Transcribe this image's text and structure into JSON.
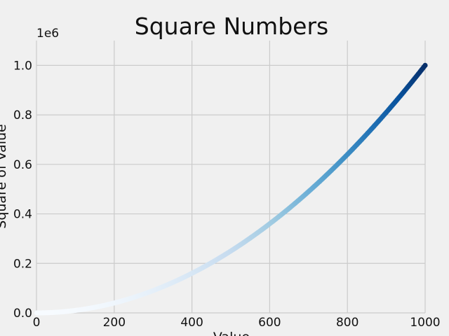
{
  "chart_data": {
    "type": "scatter",
    "title": "Square Numbers",
    "xlabel": "Value",
    "ylabel": "Square of Value",
    "y_offset_label": "1e6",
    "x_range": [
      0,
      1000
    ],
    "y_range": [
      0,
      1.1
    ],
    "x_ticks": [
      "0",
      "200",
      "400",
      "600",
      "800",
      "1000"
    ],
    "x_tick_values": [
      0,
      200,
      400,
      600,
      800,
      1000
    ],
    "y_ticks": [
      "0.0",
      "0.2",
      "0.4",
      "0.6",
      "0.8",
      "1.0"
    ],
    "y_tick_values": [
      0,
      0.2,
      0.4,
      0.6,
      0.8,
      1.0
    ],
    "grid": true,
    "colormap": "Blues",
    "colormap_light": "#f7fbff",
    "colormap_dark": "#08306b",
    "x_start": 1,
    "x_end": 1000,
    "series": [
      {
        "values": "y = x^2 for x in 1..1000",
        "color_by": "y"
      }
    ]
  },
  "style": {
    "background": "#f0f0f0",
    "grid_color": "#cbcbcb"
  }
}
